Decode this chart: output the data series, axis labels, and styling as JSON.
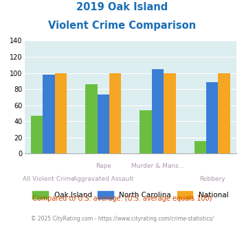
{
  "title_line1": "2019 Oak Island",
  "title_line2": "Violent Crime Comparison",
  "top_labels": [
    "",
    "Rape",
    "Murder & Mans...",
    ""
  ],
  "bottom_labels": [
    "All Violent Crime",
    "Aggravated Assault",
    "",
    "Robbery"
  ],
  "oak_island": [
    47,
    86,
    54,
    16
  ],
  "north_carolina": [
    98,
    73,
    105,
    89
  ],
  "national": [
    100,
    100,
    100,
    100
  ],
  "oak_island_color": "#6abf40",
  "north_carolina_color": "#3a7fd5",
  "national_color": "#f5a623",
  "ylim": [
    0,
    140
  ],
  "yticks": [
    0,
    20,
    40,
    60,
    80,
    100,
    120,
    140
  ],
  "plot_bg": "#ddeef0",
  "title_color": "#1a6eb5",
  "legend_labels": [
    "Oak Island",
    "North Carolina",
    "National"
  ],
  "footnote": "Compared to U.S. average. (U.S. average equals 100)",
  "copyright": "© 2025 CityRating.com - https://www.cityrating.com/crime-statistics/",
  "footnote_color": "#cc4400",
  "copyright_color": "#888888",
  "label_color": "#aa99aa"
}
